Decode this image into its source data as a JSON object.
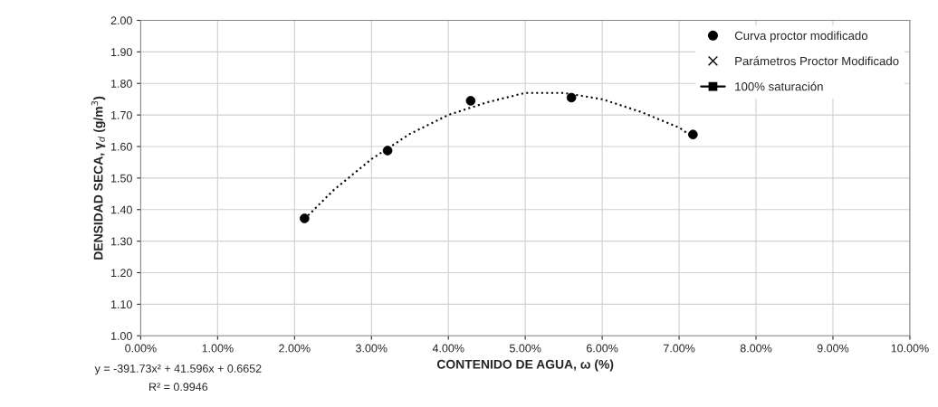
{
  "chart_data": {
    "type": "scatter",
    "xlabel": "CONTENIDO DE AGUA, ω (%)",
    "ylabel": "DENSIDAD SECA, γ$_{d}$ (g/m$^{3}$)",
    "series": [
      {
        "name": "Curva proctor modificado",
        "marker": "circle",
        "color": "#000000",
        "x": [
          2.13,
          3.21,
          4.29,
          5.6,
          7.18
        ],
        "values": [
          1.372,
          1.587,
          1.745,
          1.755,
          1.638
        ]
      },
      {
        "name": "Parámetros Proctor Modificado",
        "type": "scatter",
        "marker": "cross",
        "color": "#000000"
      },
      {
        "name": "100% saturación",
        "type": "line",
        "marker": "square",
        "line_style": "solid",
        "color": "#000000"
      },
      {
        "type": "line",
        "line_style": "dotted",
        "marker": "none",
        "color": "#000000",
        "x": [
          2.13,
          2.5,
          3.0,
          3.5,
          4.0,
          4.5,
          5.0,
          5.3,
          5.5,
          6.0,
          6.5,
          7.0,
          7.18
        ],
        "values": [
          1.37,
          1.46,
          1.56,
          1.64,
          1.7,
          1.74,
          1.77,
          1.77,
          1.77,
          1.75,
          1.71,
          1.66,
          1.63
        ]
      }
    ],
    "xlim": [
      0,
      10
    ],
    "xticks": [
      {
        "value": 0,
        "label": "0.00%"
      },
      {
        "value": 1,
        "label": "1.00%"
      },
      {
        "value": 2,
        "label": "2.00%"
      },
      {
        "value": 3,
        "label": "3.00%"
      },
      {
        "value": 4,
        "label": "4.00%"
      },
      {
        "value": 5,
        "label": "5.00%"
      },
      {
        "value": 6,
        "label": "6.00%"
      },
      {
        "value": 7,
        "label": "7.00%"
      },
      {
        "value": 8,
        "label": "8.00%"
      },
      {
        "value": 9,
        "label": "9.00%"
      },
      {
        "value": 10,
        "label": "10.00%"
      }
    ],
    "ylim": [
      1.0,
      2.0
    ],
    "yticks": [
      {
        "value": 1.0,
        "label": "1.00"
      },
      {
        "value": 1.1,
        "label": "1.10"
      },
      {
        "value": 1.2,
        "label": "1.20"
      },
      {
        "value": 1.3,
        "label": "1.30"
      },
      {
        "value": 1.4,
        "label": "1.40"
      },
      {
        "value": 1.5,
        "label": "1.50"
      },
      {
        "value": 1.6,
        "label": "1.60"
      },
      {
        "value": 1.7,
        "label": "1.70"
      },
      {
        "value": 1.8,
        "label": "1.80"
      },
      {
        "value": 1.9,
        "label": "1.90"
      },
      {
        "value": 2.0,
        "label": "2.00"
      }
    ],
    "grid": true,
    "legend": "top right",
    "annotations": [
      "y = -391.73x² + 41.596x + 0.6652",
      "R² = 0.9946"
    ]
  }
}
